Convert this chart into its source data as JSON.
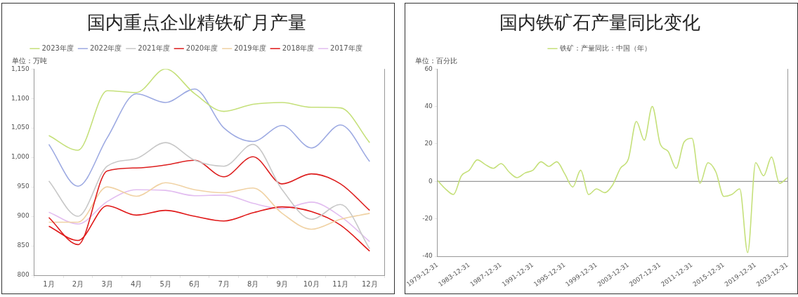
{
  "chart_data": [
    {
      "type": "line",
      "title": "国内重点企业精铁矿月产量",
      "categories": [
        "1月",
        "2月",
        "3月",
        "4月",
        "5月",
        "6月",
        "7月",
        "8月",
        "9月",
        "10月",
        "11月",
        "12月"
      ],
      "series": [
        {
          "name": "2023年度",
          "color": "#c5e07a",
          "values": [
            1037,
            1012,
            1113,
            1110,
            1150,
            1108,
            1078,
            1090,
            1093,
            1085,
            1084,
            1025
          ]
        },
        {
          "name": "2022年度",
          "color": "#9daae2",
          "values": [
            1022,
            951,
            1033,
            1108,
            1093,
            1116,
            1050,
            1027,
            1054,
            1016,
            1055,
            993
          ]
        },
        {
          "name": "2021年度",
          "color": "#c8c8c8",
          "values": [
            960,
            900,
            985,
            998,
            1025,
            995,
            985,
            1022,
            945,
            895,
            920,
            845
          ]
        },
        {
          "name": "2020年度",
          "color": "#dd1f1f",
          "values": [
            898,
            852,
            977,
            982,
            987,
            995,
            967,
            1001,
            955,
            972,
            955,
            910
          ]
        },
        {
          "name": "2019年度",
          "color": "#f0d2a4",
          "values": [
            890,
            890,
            950,
            934,
            957,
            945,
            940,
            948,
            905,
            878,
            895,
            905
          ]
        },
        {
          "name": "2018年度",
          "color": "#e01818",
          "values": [
            883,
            859,
            918,
            902,
            910,
            900,
            892,
            906,
            916,
            908,
            885,
            841
          ]
        },
        {
          "name": "2017年度",
          "color": "#e2bdf0",
          "values": [
            907,
            887,
            925,
            945,
            944,
            935,
            936,
            922,
            913,
            924,
            900,
            857
          ]
        }
      ],
      "ylim": [
        800,
        1150
      ],
      "yticks": [
        800,
        850,
        900,
        950,
        {
          "value": 1000,
          "label": "1,000"
        },
        {
          "value": 1050,
          "label": "1,050"
        },
        {
          "value": 1100,
          "label": "1,100"
        },
        {
          "value": 1150,
          "label": "1,150"
        }
      ],
      "grid": false,
      "legend": "top",
      "marker": "none",
      "line_style": "solid",
      "annotations": [
        "单位：万吨"
      ]
    },
    {
      "type": "line",
      "title": "国内铁矿石产量同比变化",
      "x": [
        "1979-12-31",
        "1980-12-31",
        "1981-12-31",
        "1982-12-31",
        "1983-12-31",
        "1984-12-31",
        "1985-12-31",
        "1986-12-31",
        "1987-12-31",
        "1988-12-31",
        "1989-12-31",
        "1990-12-31",
        "1991-12-31",
        "1992-12-31",
        "1993-12-31",
        "1994-12-31",
        "1995-12-31",
        "1996-12-31",
        "1997-12-31",
        "1998-12-31",
        "1999-12-31",
        "2000-12-31",
        "2001-12-31",
        "2002-12-31",
        "2003-12-31",
        "2004-12-31",
        "2005-12-31",
        "2006-12-31",
        "2007-12-31",
        "2008-12-31",
        "2009-12-31",
        "2010-12-31",
        "2011-12-31",
        "2012-12-31",
        "2013-12-31",
        "2014-12-31",
        "2015-12-31",
        "2016-12-31",
        "2017-12-31",
        "2018-12-31",
        "2019-12-31",
        "2020-12-31",
        "2021-12-31",
        "2022-12-31",
        "2023-12-31"
      ],
      "series": [
        {
          "name": "铁矿：产量同比：中国（年）",
          "color": "#c5e07a",
          "values": [
            0.5,
            -4,
            -7,
            3,
            6,
            11.5,
            9,
            7,
            9.5,
            5,
            2,
            4.5,
            6,
            10.5,
            8,
            10.5,
            4,
            -3,
            6,
            -7,
            -4,
            -6,
            -2,
            7,
            12,
            32,
            22,
            40,
            20,
            16,
            7,
            21,
            23,
            -1,
            10,
            5,
            -8,
            -7,
            -4,
            -38,
            10,
            3,
            13,
            -1,
            2
          ]
        }
      ],
      "xlim": [
        "1979-12-31",
        "2023-12-31"
      ],
      "xticks": [
        "1979-12-31",
        "1983-12-31",
        "1987-12-31",
        "1991-12-31",
        "1995-12-31",
        "1999-12-31",
        "2003-12-31",
        "2007-12-31",
        "2011-12-31",
        "2015-12-31",
        "2019-12-31",
        "2023-12-31"
      ],
      "ylim": [
        -40,
        60
      ],
      "yticks": [
        -40,
        -20,
        0,
        20,
        40,
        60
      ],
      "grid": false,
      "legend": "top",
      "marker": "none",
      "line_style": "solid",
      "ref_lines": [
        {
          "axis": "y",
          "value": 0,
          "color": "#999999"
        }
      ],
      "annotations": [
        "单位：百分比"
      ]
    }
  ]
}
